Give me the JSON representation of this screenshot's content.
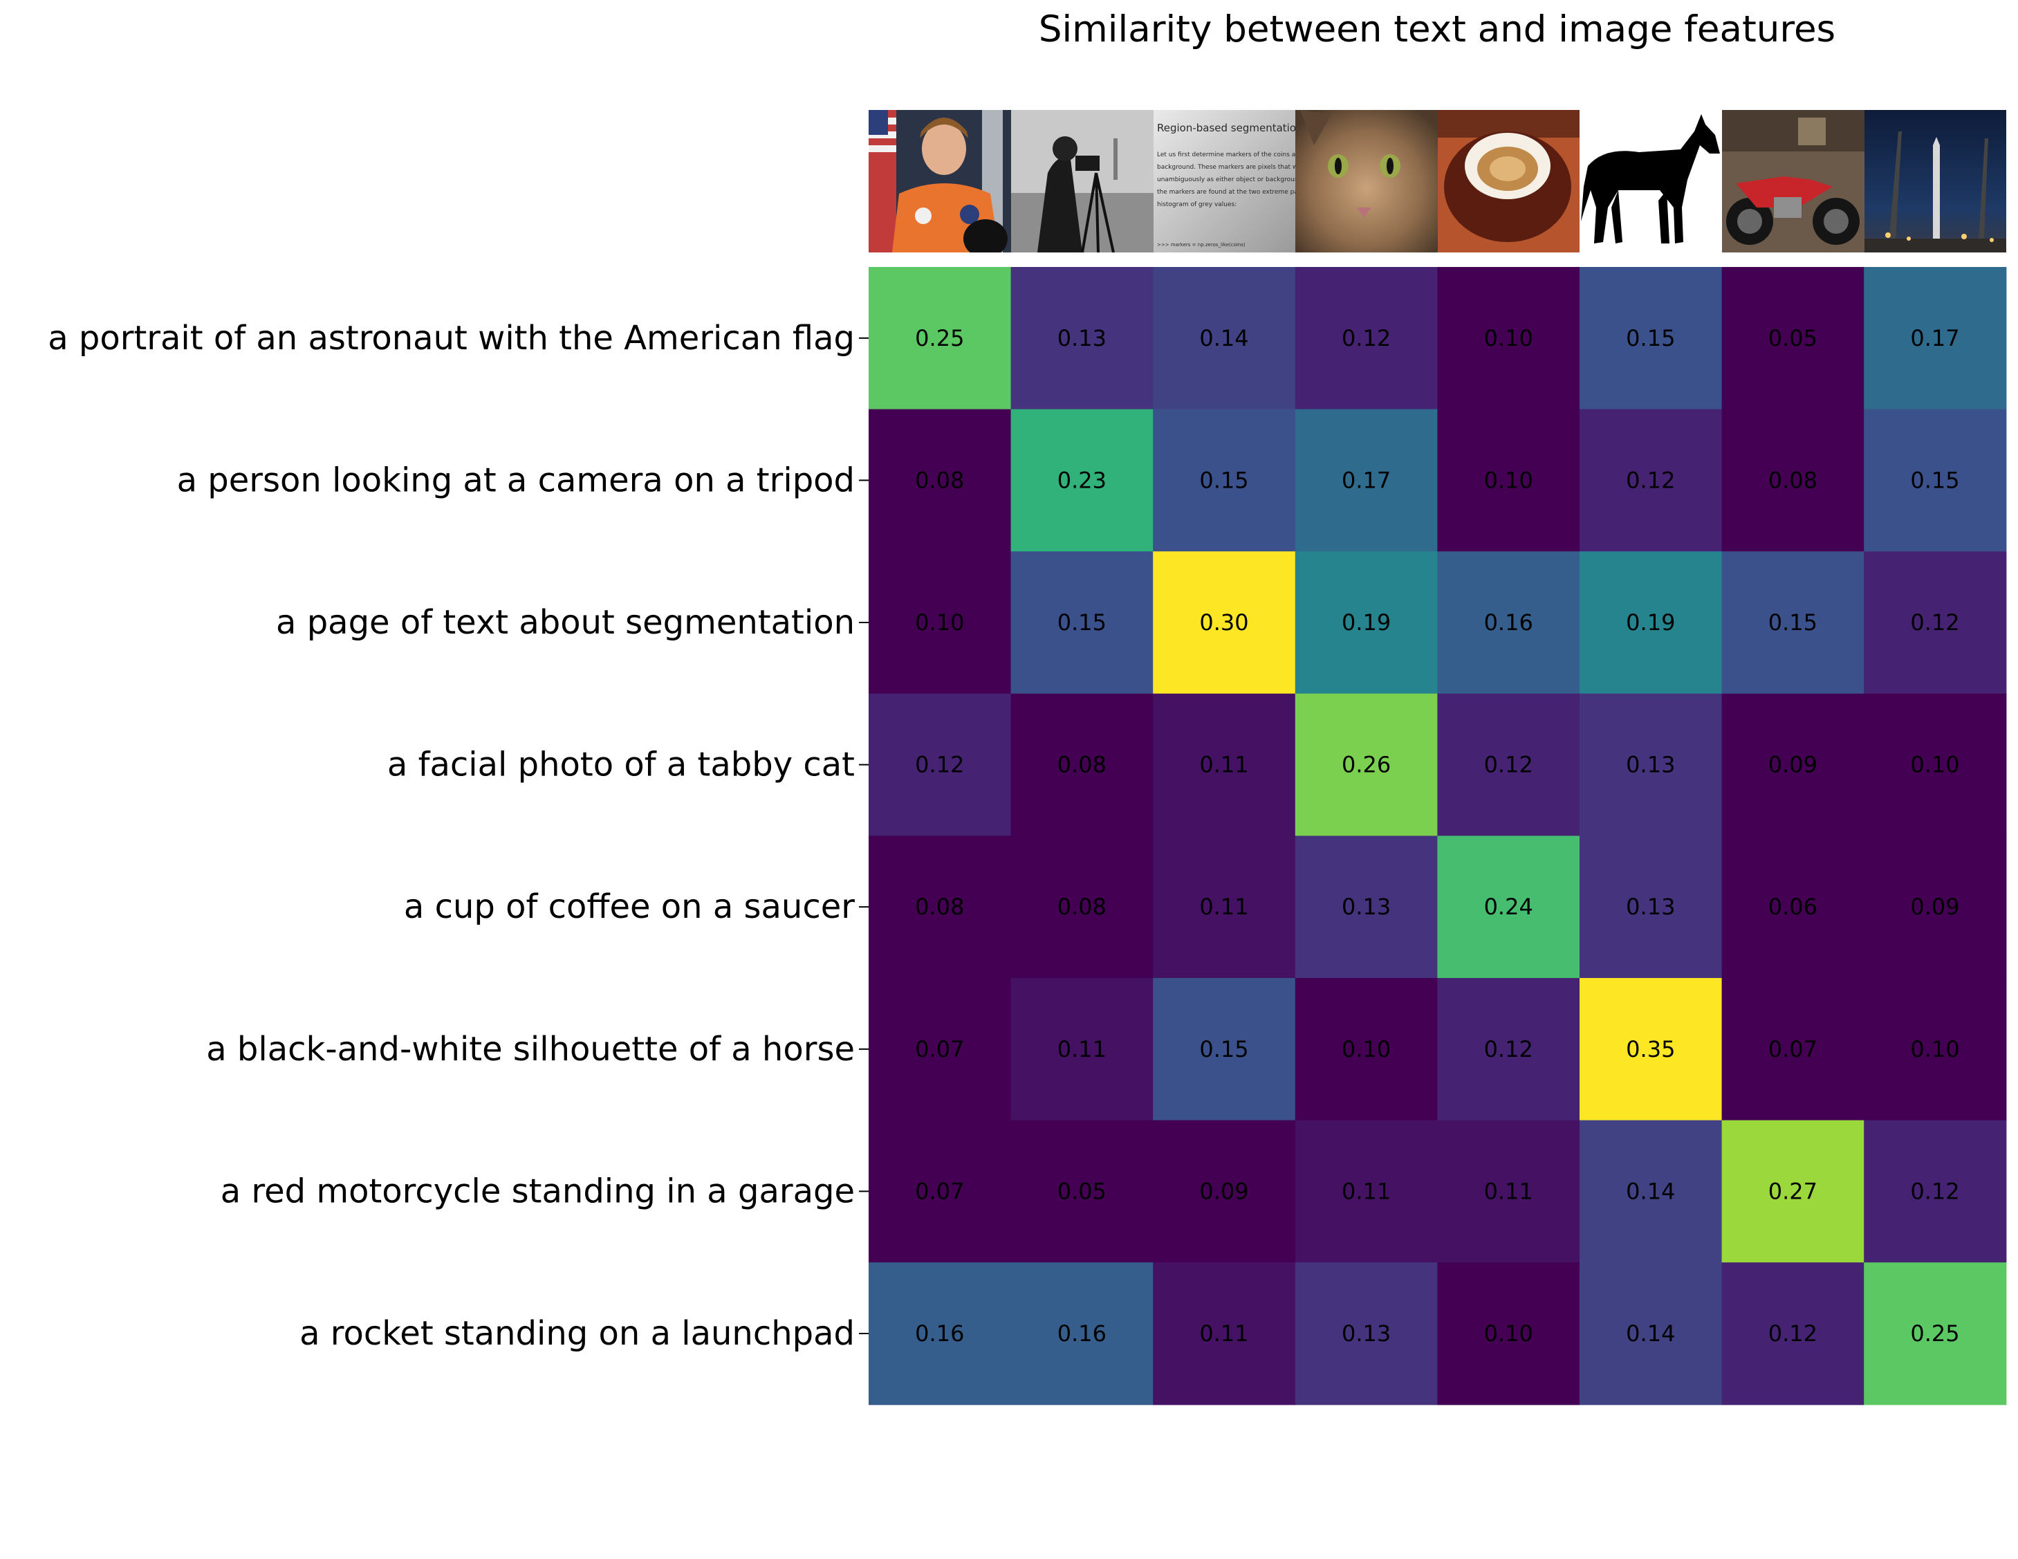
{
  "chart_data": {
    "type": "heatmap",
    "title": "Similarity between text and image features",
    "rows": [
      "a portrait of an astronaut with the American flag",
      "a person looking at a camera on a tripod",
      "a page of text about segmentation",
      "a facial photo of a tabby cat",
      "a cup of coffee on a saucer",
      "a black-and-white silhouette of a horse",
      "a red motorcycle standing in a garage",
      "a rocket standing on a launchpad"
    ],
    "columns": [
      "astronaut",
      "camera",
      "page",
      "chelsea",
      "coffee",
      "horse",
      "motorcycle_right",
      "rocket"
    ],
    "values": [
      [
        0.25,
        0.13,
        0.14,
        0.12,
        0.1,
        0.15,
        0.05,
        0.17
      ],
      [
        0.08,
        0.23,
        0.15,
        0.17,
        0.1,
        0.12,
        0.08,
        0.15
      ],
      [
        0.1,
        0.15,
        0.3,
        0.19,
        0.16,
        0.19,
        0.15,
        0.12
      ],
      [
        0.12,
        0.08,
        0.11,
        0.26,
        0.12,
        0.13,
        0.09,
        0.1
      ],
      [
        0.08,
        0.08,
        0.11,
        0.13,
        0.24,
        0.13,
        0.06,
        0.09
      ],
      [
        0.07,
        0.11,
        0.15,
        0.1,
        0.12,
        0.35,
        0.07,
        0.1
      ],
      [
        0.07,
        0.05,
        0.09,
        0.11,
        0.11,
        0.14,
        0.27,
        0.12
      ],
      [
        0.16,
        0.16,
        0.11,
        0.13,
        0.1,
        0.14,
        0.12,
        0.25
      ]
    ],
    "color_range": [
      0.1,
      0.3
    ],
    "colormap": "viridis",
    "grid": false,
    "image_texts": {
      "page_heading": "Region-based segmentation",
      "page_lines": [
        "Let us first determine markers of the coins and the",
        "background. These markers are pixels that we can label",
        "unambiguously as either object or background. Here,",
        "the markers are found at the two extreme parts of the",
        "histogram of grey values:",
        ">>> markers = np.zeros_like(coins)"
      ]
    }
  }
}
